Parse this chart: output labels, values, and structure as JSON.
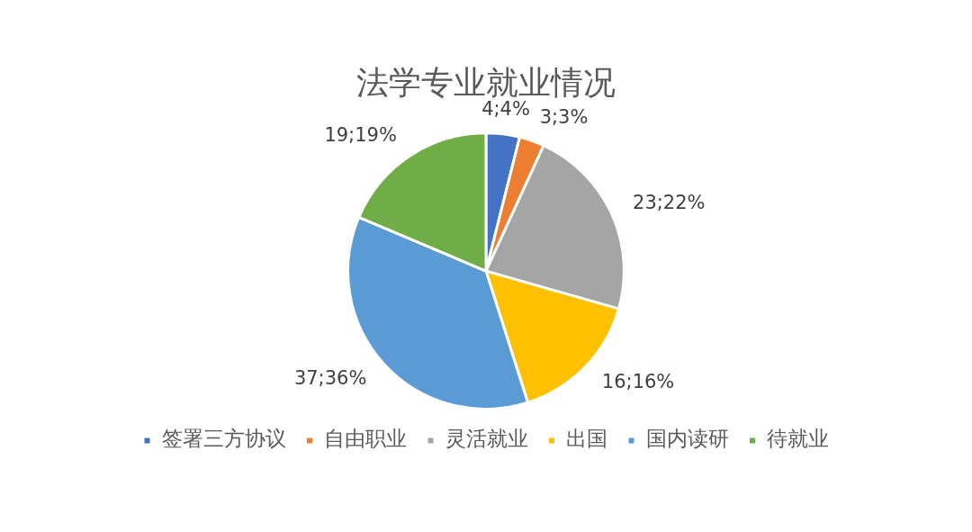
{
  "chart_data": {
    "type": "pie",
    "title": "法学专业就业情况",
    "categories": [
      "签署三方协议",
      "自由职业",
      "灵活就业",
      "出国",
      "国内读研",
      "待就业"
    ],
    "values": [
      4,
      3,
      23,
      16,
      37,
      19
    ],
    "value_labels": [
      "4;4%",
      "3;3%",
      "23;22%",
      "16;16%",
      "37;36%",
      "19;19%"
    ],
    "colors": [
      "#4472c4",
      "#ed7d31",
      "#a5a5a5",
      "#ffc000",
      "#5b9bd5",
      "#70ad47"
    ],
    "legend": "bottom"
  }
}
